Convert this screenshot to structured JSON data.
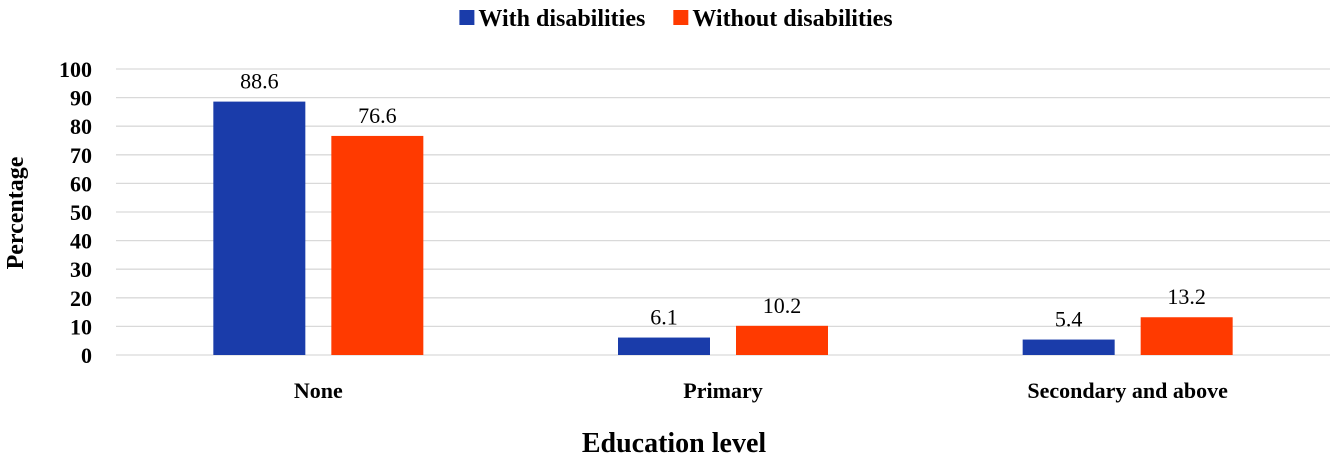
{
  "chart_data": {
    "type": "bar",
    "categories": [
      "None",
      "Primary",
      "Secondary and above"
    ],
    "series": [
      {
        "name": "With disabilities",
        "values": [
          88.6,
          6.1,
          5.4
        ],
        "color": "#1a3caa"
      },
      {
        "name": "Without disabilities",
        "values": [
          76.6,
          10.2,
          13.2
        ],
        "color": "#ff3a00"
      }
    ],
    "xlabel": "Education level",
    "ylabel": "Percentage",
    "ylim": [
      0,
      100
    ],
    "yticks": [
      0,
      10,
      20,
      30,
      40,
      50,
      60,
      70,
      80,
      90,
      100
    ],
    "grid": true,
    "legend_position": "top-center",
    "data_labels": true
  }
}
